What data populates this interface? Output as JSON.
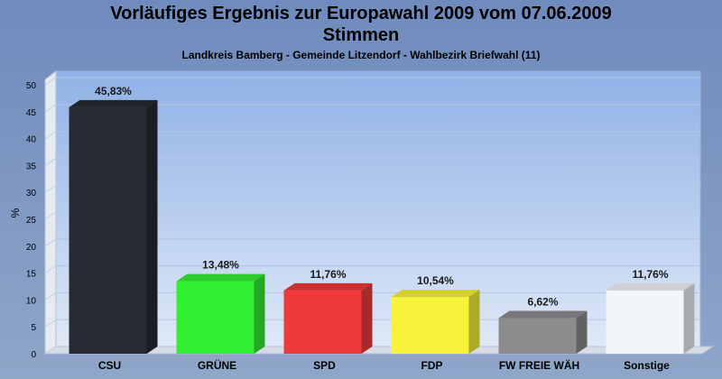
{
  "title": "Vorläufiges Ergebnis zur Europawahl 2009 vom 07.06.2009",
  "subtitle": "Stimmen",
  "caption": "Landkreis Bamberg - Gemeinde Litzendorf - Wahlbezirk Briefwahl (11)",
  "chart_data": {
    "type": "bar",
    "categories": [
      "CSU",
      "GRÜNE",
      "SPD",
      "FDP",
      "FW FREIE WÄH",
      "Sonstige"
    ],
    "values": [
      45.83,
      13.48,
      11.76,
      10.54,
      6.62,
      11.76
    ],
    "value_labels": [
      "45,83%",
      "13,48%",
      "11,76%",
      "10,54%",
      "6,62%",
      "11,76%"
    ],
    "colors": [
      "#262a33",
      "#33f033",
      "#f03a3a",
      "#f7f33a",
      "#8c8c8e",
      "#f2f5fa"
    ],
    "ylabel": "%",
    "ylim": [
      0,
      50
    ],
    "yticks": [
      "0",
      "5",
      "10",
      "15",
      "20",
      "25",
      "30",
      "35",
      "40",
      "45",
      "50"
    ],
    "grid": true
  }
}
